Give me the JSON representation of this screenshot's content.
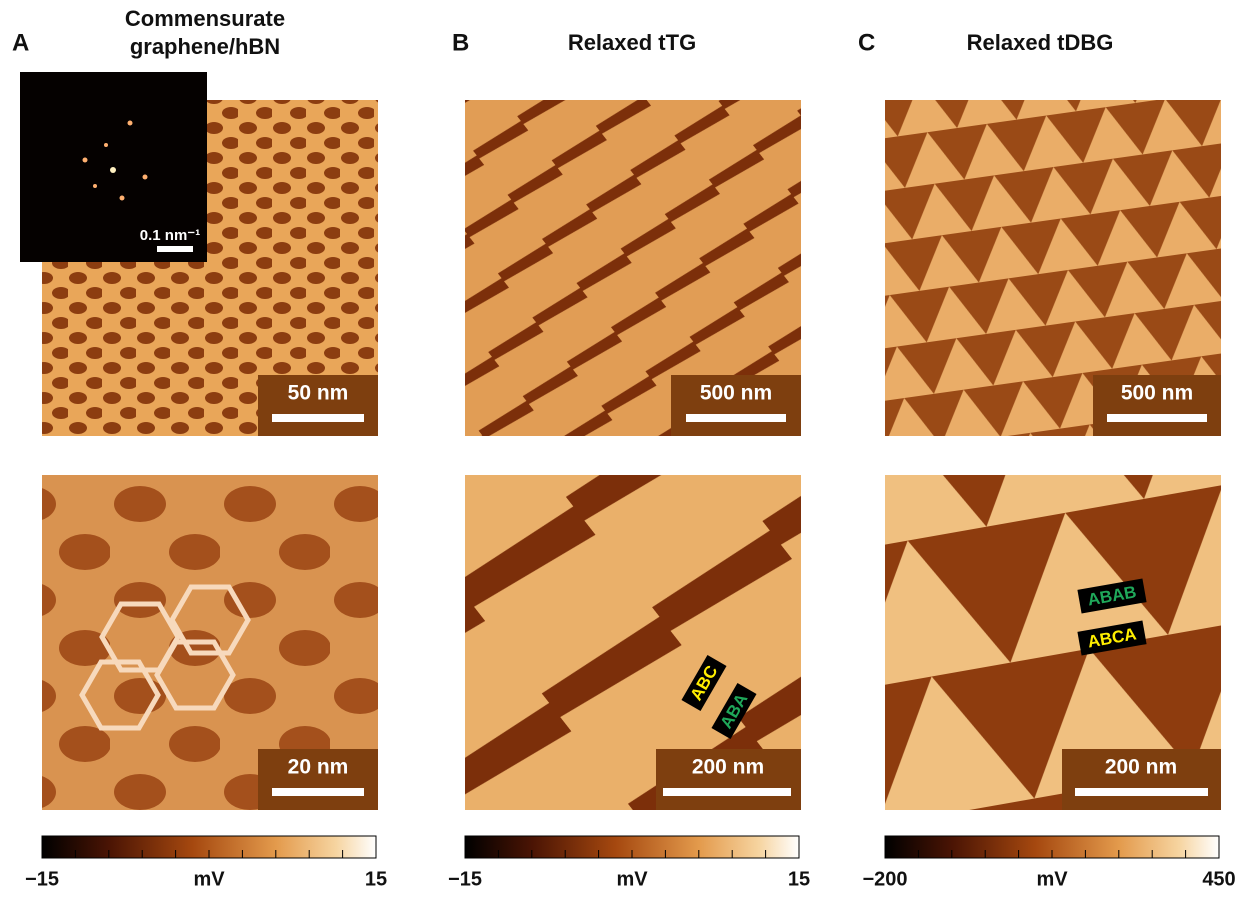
{
  "panels": [
    {
      "label": "A",
      "title": [
        "Commensurate",
        "graphene/hBN"
      ],
      "inset_scale": "0.1 nm⁻¹",
      "top_scale": "50 nm",
      "bottom_scale": "20 nm",
      "colorbar": {
        "min": "−15",
        "unit": "mV",
        "max": "15"
      }
    },
    {
      "label": "B",
      "title": [
        "Relaxed tTG"
      ],
      "top_scale": "500 nm",
      "bottom_scale": "200 nm",
      "tags": [
        "ABC",
        "ABA"
      ],
      "colorbar": {
        "min": "−15",
        "unit": "mV",
        "max": "15"
      }
    },
    {
      "label": "C",
      "title": [
        "Relaxed tDBG"
      ],
      "top_scale": "500 nm",
      "bottom_scale": "200 nm",
      "tags": [
        "ABAB",
        "ABCA"
      ],
      "colorbar": {
        "min": "−200",
        "unit": "mV",
        "max": "450"
      }
    }
  ]
}
